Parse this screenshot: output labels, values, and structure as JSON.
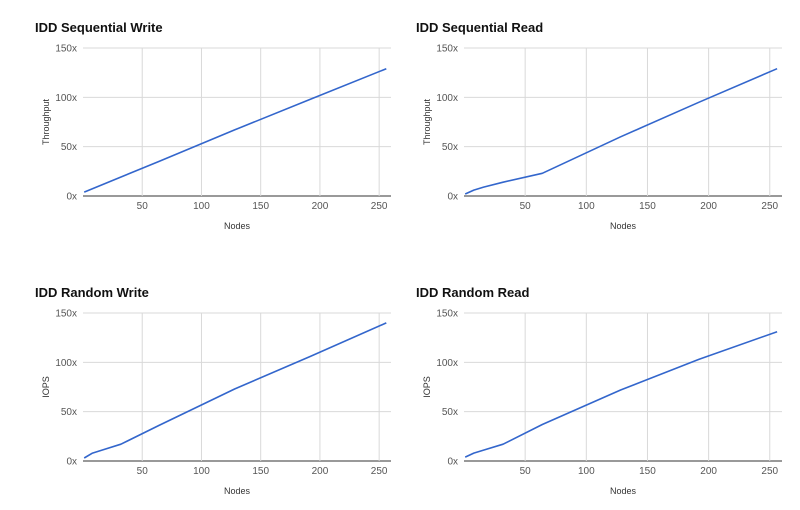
{
  "chart_data": [
    {
      "type": "line",
      "title": "IDD Sequential Write",
      "xlabel": "Nodes",
      "ylabel": "Throughput",
      "xlim": [
        0,
        260
      ],
      "ylim": [
        0,
        150
      ],
      "xticks": [
        50,
        100,
        150,
        200,
        250
      ],
      "xtick_labels": [
        "50",
        "100",
        "150",
        "200",
        "250"
      ],
      "yticks": [
        0,
        50,
        100,
        150
      ],
      "ytick_labels": [
        "0x",
        "50x",
        "100x",
        "150x"
      ],
      "grid": true,
      "legend": "none",
      "color": "#3366cc",
      "series": [
        {
          "x": [
            1,
            64,
            128,
            192,
            256
          ],
          "y": [
            4,
            35,
            67,
            98,
            129
          ]
        }
      ]
    },
    {
      "type": "line",
      "title": "IDD Sequential Read",
      "xlabel": "Nodes",
      "ylabel": "Throughput",
      "xlim": [
        0,
        260
      ],
      "ylim": [
        0,
        150
      ],
      "xticks": [
        50,
        100,
        150,
        200,
        250
      ],
      "xtick_labels": [
        "50",
        "100",
        "150",
        "200",
        "250"
      ],
      "yticks": [
        0,
        50,
        100,
        150
      ],
      "ytick_labels": [
        "0x",
        "50x",
        "100x",
        "150x"
      ],
      "grid": true,
      "legend": "none",
      "color": "#3366cc",
      "series": [
        {
          "x": [
            1,
            8,
            16,
            32,
            64,
            128,
            192,
            256
          ],
          "y": [
            2,
            6,
            9,
            14,
            23,
            60,
            95,
            129
          ]
        }
      ]
    },
    {
      "type": "line",
      "title": "IDD Random Write",
      "xlabel": "Nodes",
      "ylabel": "IOPS",
      "xlim": [
        0,
        260
      ],
      "ylim": [
        0,
        150
      ],
      "xticks": [
        50,
        100,
        150,
        200,
        250
      ],
      "xtick_labels": [
        "50",
        "100",
        "150",
        "200",
        "250"
      ],
      "yticks": [
        0,
        50,
        100,
        150
      ],
      "ytick_labels": [
        "0x",
        "50x",
        "100x",
        "150x"
      ],
      "grid": true,
      "legend": "none",
      "color": "#3366cc",
      "series": [
        {
          "x": [
            1,
            8,
            16,
            32,
            64,
            128,
            192,
            256
          ],
          "y": [
            3,
            8,
            11,
            17,
            36,
            73,
            106,
            140
          ]
        }
      ]
    },
    {
      "type": "line",
      "title": "IDD Random Read",
      "xlabel": "Nodes",
      "ylabel": "IOPS",
      "xlim": [
        0,
        260
      ],
      "ylim": [
        0,
        150
      ],
      "xticks": [
        50,
        100,
        150,
        200,
        250
      ],
      "xtick_labels": [
        "50",
        "100",
        "150",
        "200",
        "250"
      ],
      "yticks": [
        0,
        50,
        100,
        150
      ],
      "ytick_labels": [
        "0x",
        "50x",
        "100x",
        "150x"
      ],
      "grid": true,
      "legend": "none",
      "color": "#3366cc",
      "series": [
        {
          "x": [
            1,
            8,
            16,
            32,
            64,
            128,
            192,
            256
          ],
          "y": [
            4,
            8,
            11,
            17,
            37,
            72,
            103,
            131
          ]
        }
      ]
    }
  ]
}
